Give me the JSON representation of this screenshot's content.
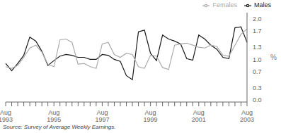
{
  "chart_data": {
    "type": "line",
    "ylabel": "%",
    "annotations": [
      "Source: Survey of Average Weekly Earnings."
    ],
    "categories": [
      "Aug\n1993",
      null,
      null,
      null,
      null,
      null,
      null,
      null,
      "Aug\n1995",
      null,
      null,
      null,
      null,
      null,
      null,
      null,
      "Aug\n1997",
      null,
      null,
      null,
      null,
      null,
      null,
      null,
      "Aug\n1999",
      null,
      null,
      null,
      null,
      null,
      null,
      null,
      "Aug\n2001",
      null,
      null,
      null,
      null,
      null,
      null,
      null,
      "Aug\n2003"
    ],
    "series": [
      {
        "name": "Males",
        "color": "#1a1a1a",
        "values": [
          0.9,
          0.72,
          0.9,
          1.1,
          1.55,
          1.45,
          1.2,
          0.85,
          0.97,
          1.08,
          1.12,
          1.1,
          1.05,
          1.05,
          1.0,
          1.0,
          1.12,
          1.1,
          1.0,
          0.95,
          0.6,
          0.5,
          1.68,
          1.72,
          1.15,
          0.97,
          1.6,
          1.5,
          1.45,
          1.38,
          1.02,
          0.98,
          1.6,
          1.5,
          1.35,
          1.25,
          1.05,
          1.02,
          1.78,
          1.8,
          1.42
        ]
      },
      {
        "name": "Females",
        "color": "#aaaaaa",
        "values": [
          0.82,
          0.78,
          0.85,
          1.05,
          1.28,
          1.35,
          1.18,
          0.88,
          0.82,
          1.48,
          1.5,
          1.42,
          0.88,
          0.9,
          0.82,
          0.78,
          1.38,
          1.42,
          1.12,
          1.05,
          1.15,
          1.12,
          0.82,
          0.78,
          1.1,
          1.08,
          0.8,
          0.75,
          1.35,
          1.38,
          1.4,
          1.35,
          1.3,
          1.28,
          1.35,
          1.32,
          1.1,
          1.08,
          1.35,
          1.62,
          1.75
        ]
      }
    ],
    "ylim": [
      -0.05,
      2.15
    ],
    "yticks": [
      {
        "value": 0.0,
        "label": "0.0"
      },
      0.3,
      0.7,
      {
        "value": 1.0,
        "label": "1.0"
      },
      1.3,
      1.7,
      {
        "value": 2.0,
        "label": "2.0"
      }
    ],
    "grid": false,
    "legend": "upper right"
  }
}
